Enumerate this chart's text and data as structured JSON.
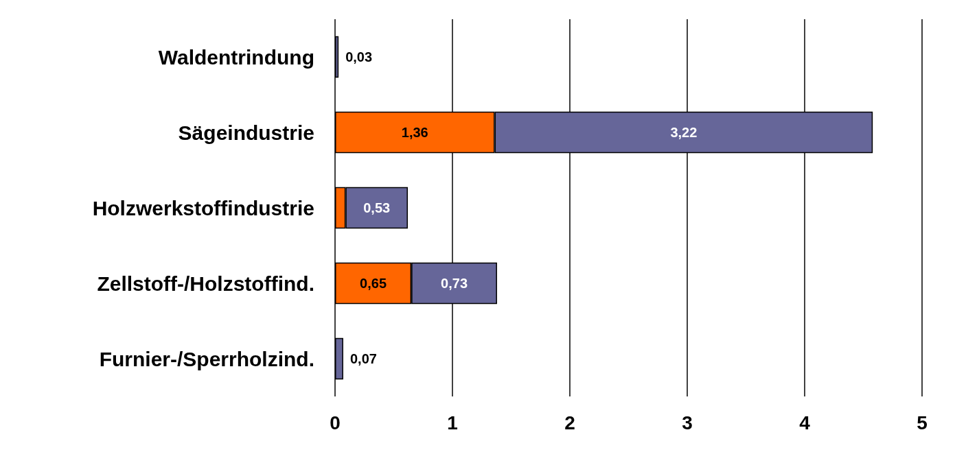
{
  "chart_data": {
    "type": "bar",
    "orientation": "horizontal",
    "stacked": true,
    "categories": [
      "Waldentrindung",
      "Sägeindustrie",
      "Holzwerkstoffindustrie",
      "Zellstoff-/Holzstoffind.",
      "Furnier-/Sperrholzind."
    ],
    "series": [
      {
        "color": "#ff6600",
        "values": [
          null,
          1.36,
          0.09,
          0.65,
          null
        ],
        "value_labels": [
          null,
          "1,36",
          null,
          "0,65",
          null
        ]
      },
      {
        "color": "#666699",
        "values": [
          0.03,
          3.22,
          0.53,
          0.73,
          0.07
        ],
        "value_labels": [
          "0,03",
          "3,22",
          "0,53",
          "0,73",
          "0,07"
        ]
      }
    ],
    "xlim": [
      0,
      5
    ],
    "xticks": [
      0,
      1,
      2,
      3,
      4,
      5
    ],
    "grid": "x"
  }
}
